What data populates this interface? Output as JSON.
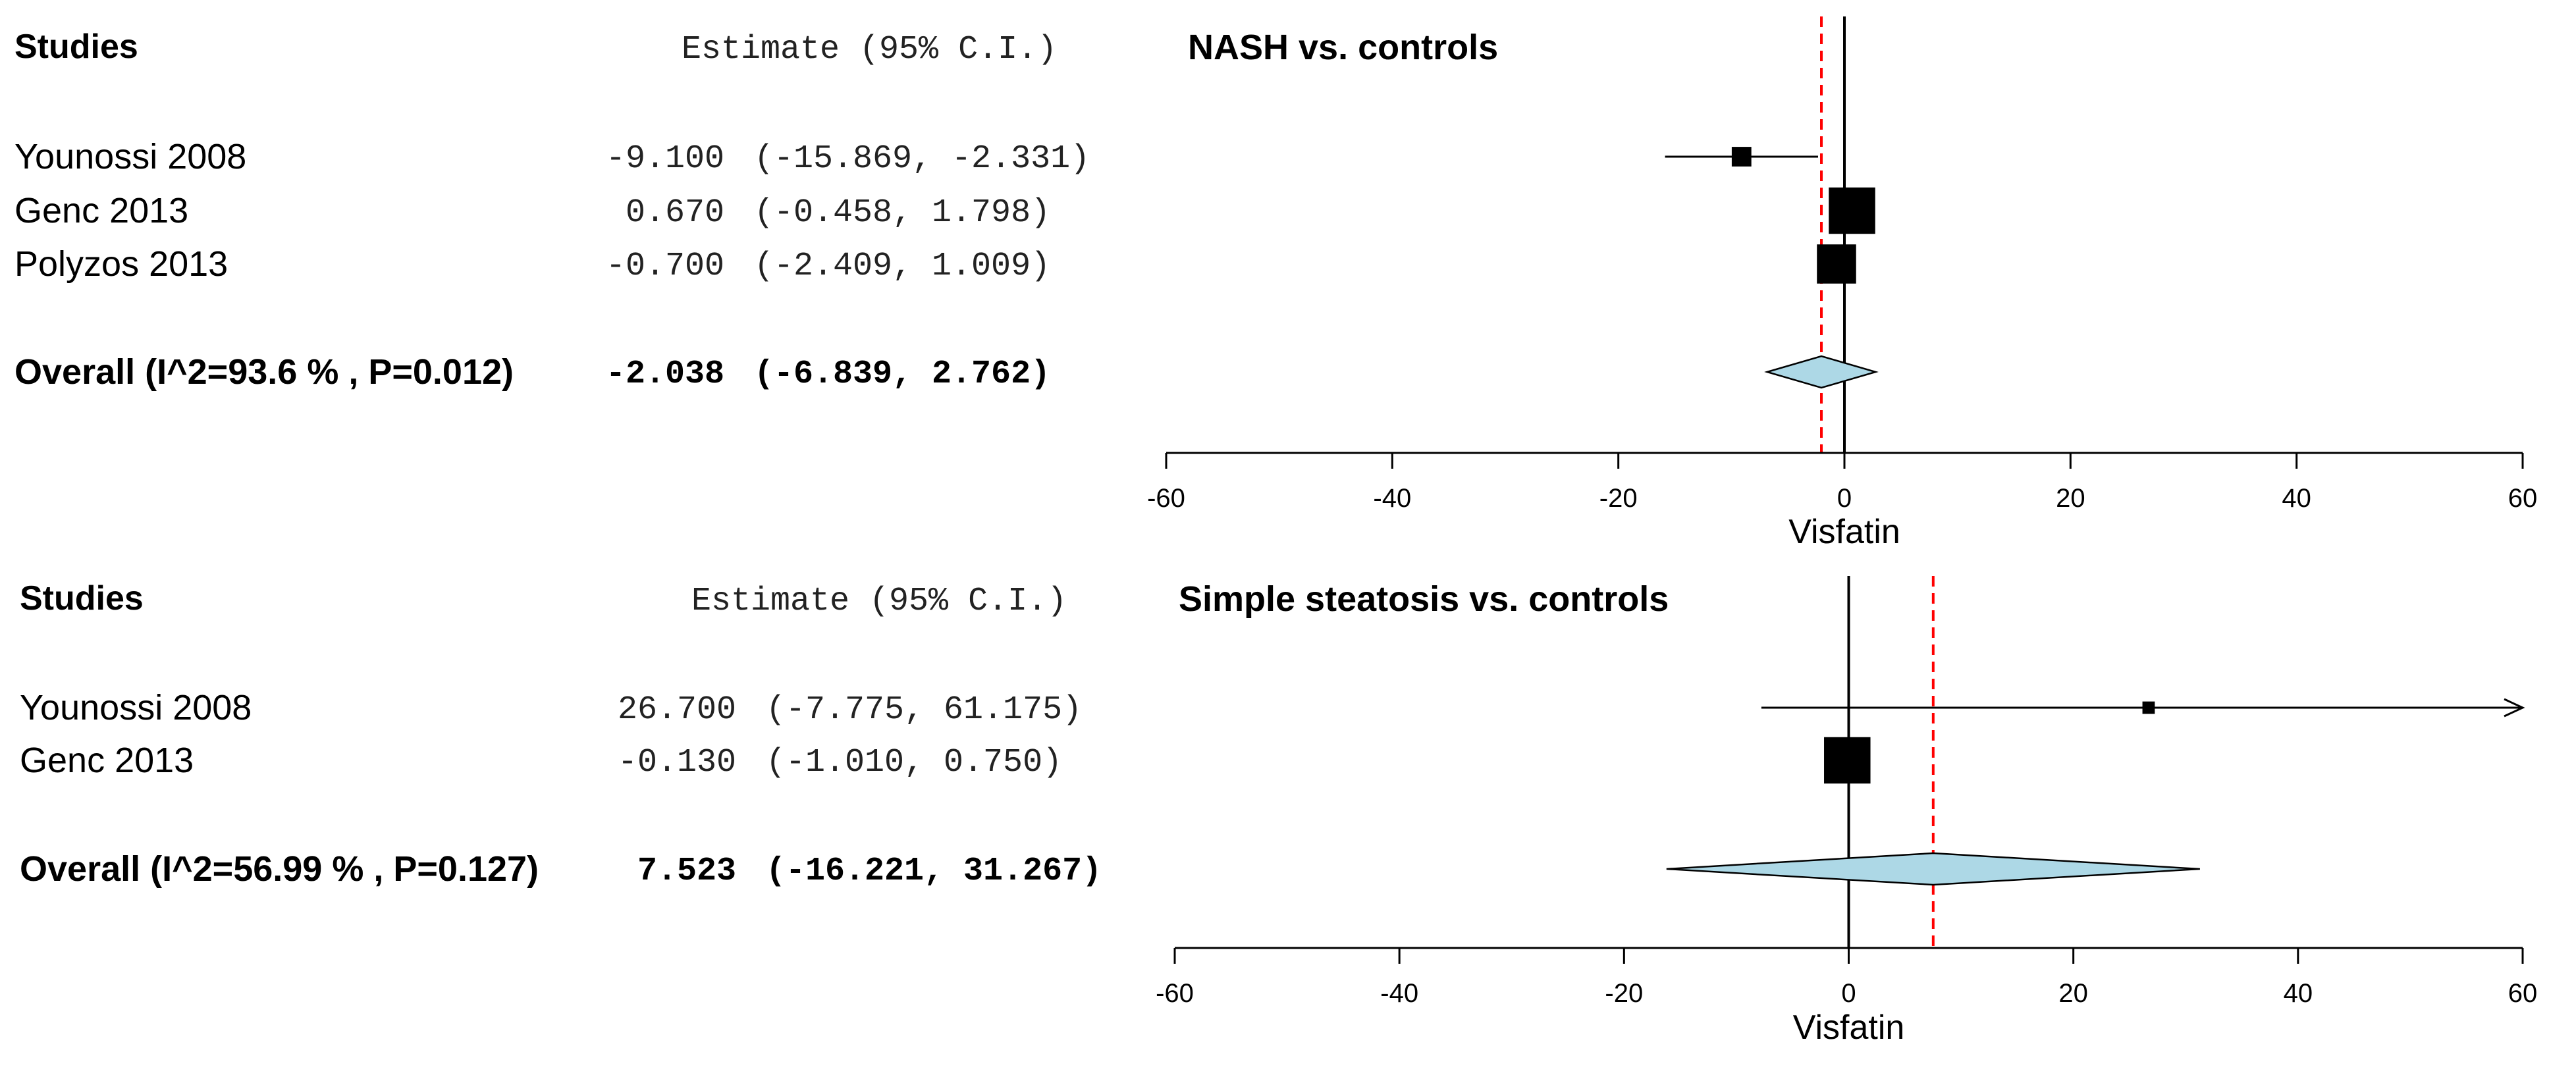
{
  "chart_data": [
    {
      "type": "forest",
      "title": "NASH vs. controls",
      "columns": {
        "studies": "Studies",
        "estimate": "Estimate (95% C.I.)"
      },
      "xlabel": "Visfatin",
      "xlim": [
        -60,
        60
      ],
      "xticks": [
        "-60",
        "-40",
        "-20",
        "0",
        "20",
        "40",
        "60"
      ],
      "studies": [
        {
          "label": "Younossi 2008",
          "est": -9.1,
          "lo": -15.869,
          "hi": -2.331,
          "est_text": "-9.100",
          "ci_text": "(-15.869, -2.331)",
          "weight": 0.18
        },
        {
          "label": "Genc 2013",
          "est": 0.67,
          "lo": -0.458,
          "hi": 1.798,
          "est_text": "0.670",
          "ci_text": "(-0.458,  1.798)",
          "weight": 0.55
        },
        {
          "label": "Polyzos 2013",
          "est": -0.7,
          "lo": -2.409,
          "hi": 1.009,
          "est_text": "-0.700",
          "ci_text": "(-2.409,  1.009)",
          "weight": 0.45
        }
      ],
      "overall": {
        "label": "Overall (I^2=93.6 % , P=0.012)",
        "est": -2.038,
        "lo": -6.839,
        "hi": 2.762,
        "est_text": "-2.038",
        "ci_text": "(-6.839,  2.762)"
      },
      "colors": {
        "diamond": "#add8e6",
        "pooled_line": "#ff0000",
        "square": "#000000"
      }
    },
    {
      "type": "forest",
      "title": "Simple steatosis vs. controls",
      "columns": {
        "studies": "Studies",
        "estimate": "Estimate (95% C.I.)"
      },
      "xlabel": "Visfatin",
      "xlim": [
        -60,
        60
      ],
      "xticks": [
        "-60",
        "-40",
        "-20",
        "0",
        "20",
        "40",
        "60"
      ],
      "studies": [
        {
          "label": "Younossi 2008",
          "est": 26.7,
          "lo": -7.775,
          "hi": 61.175,
          "est_text": "26.700",
          "ci_text": "(-7.775, 61.175)",
          "weight": 0.08,
          "arrow_right": true
        },
        {
          "label": "Genc 2013",
          "est": -0.13,
          "lo": -1.01,
          "hi": 0.75,
          "est_text": "-0.130",
          "ci_text": "(-1.010,  0.750)",
          "weight": 0.55
        }
      ],
      "overall": {
        "label": "Overall (I^2=56.99 % , P=0.127)",
        "est": 7.523,
        "lo": -16.221,
        "hi": 31.267,
        "est_text": "7.523",
        "ci_text": "(-16.221, 31.267)"
      },
      "colors": {
        "diamond": "#add8e6",
        "pooled_line": "#ff0000",
        "square": "#000000"
      }
    }
  ]
}
